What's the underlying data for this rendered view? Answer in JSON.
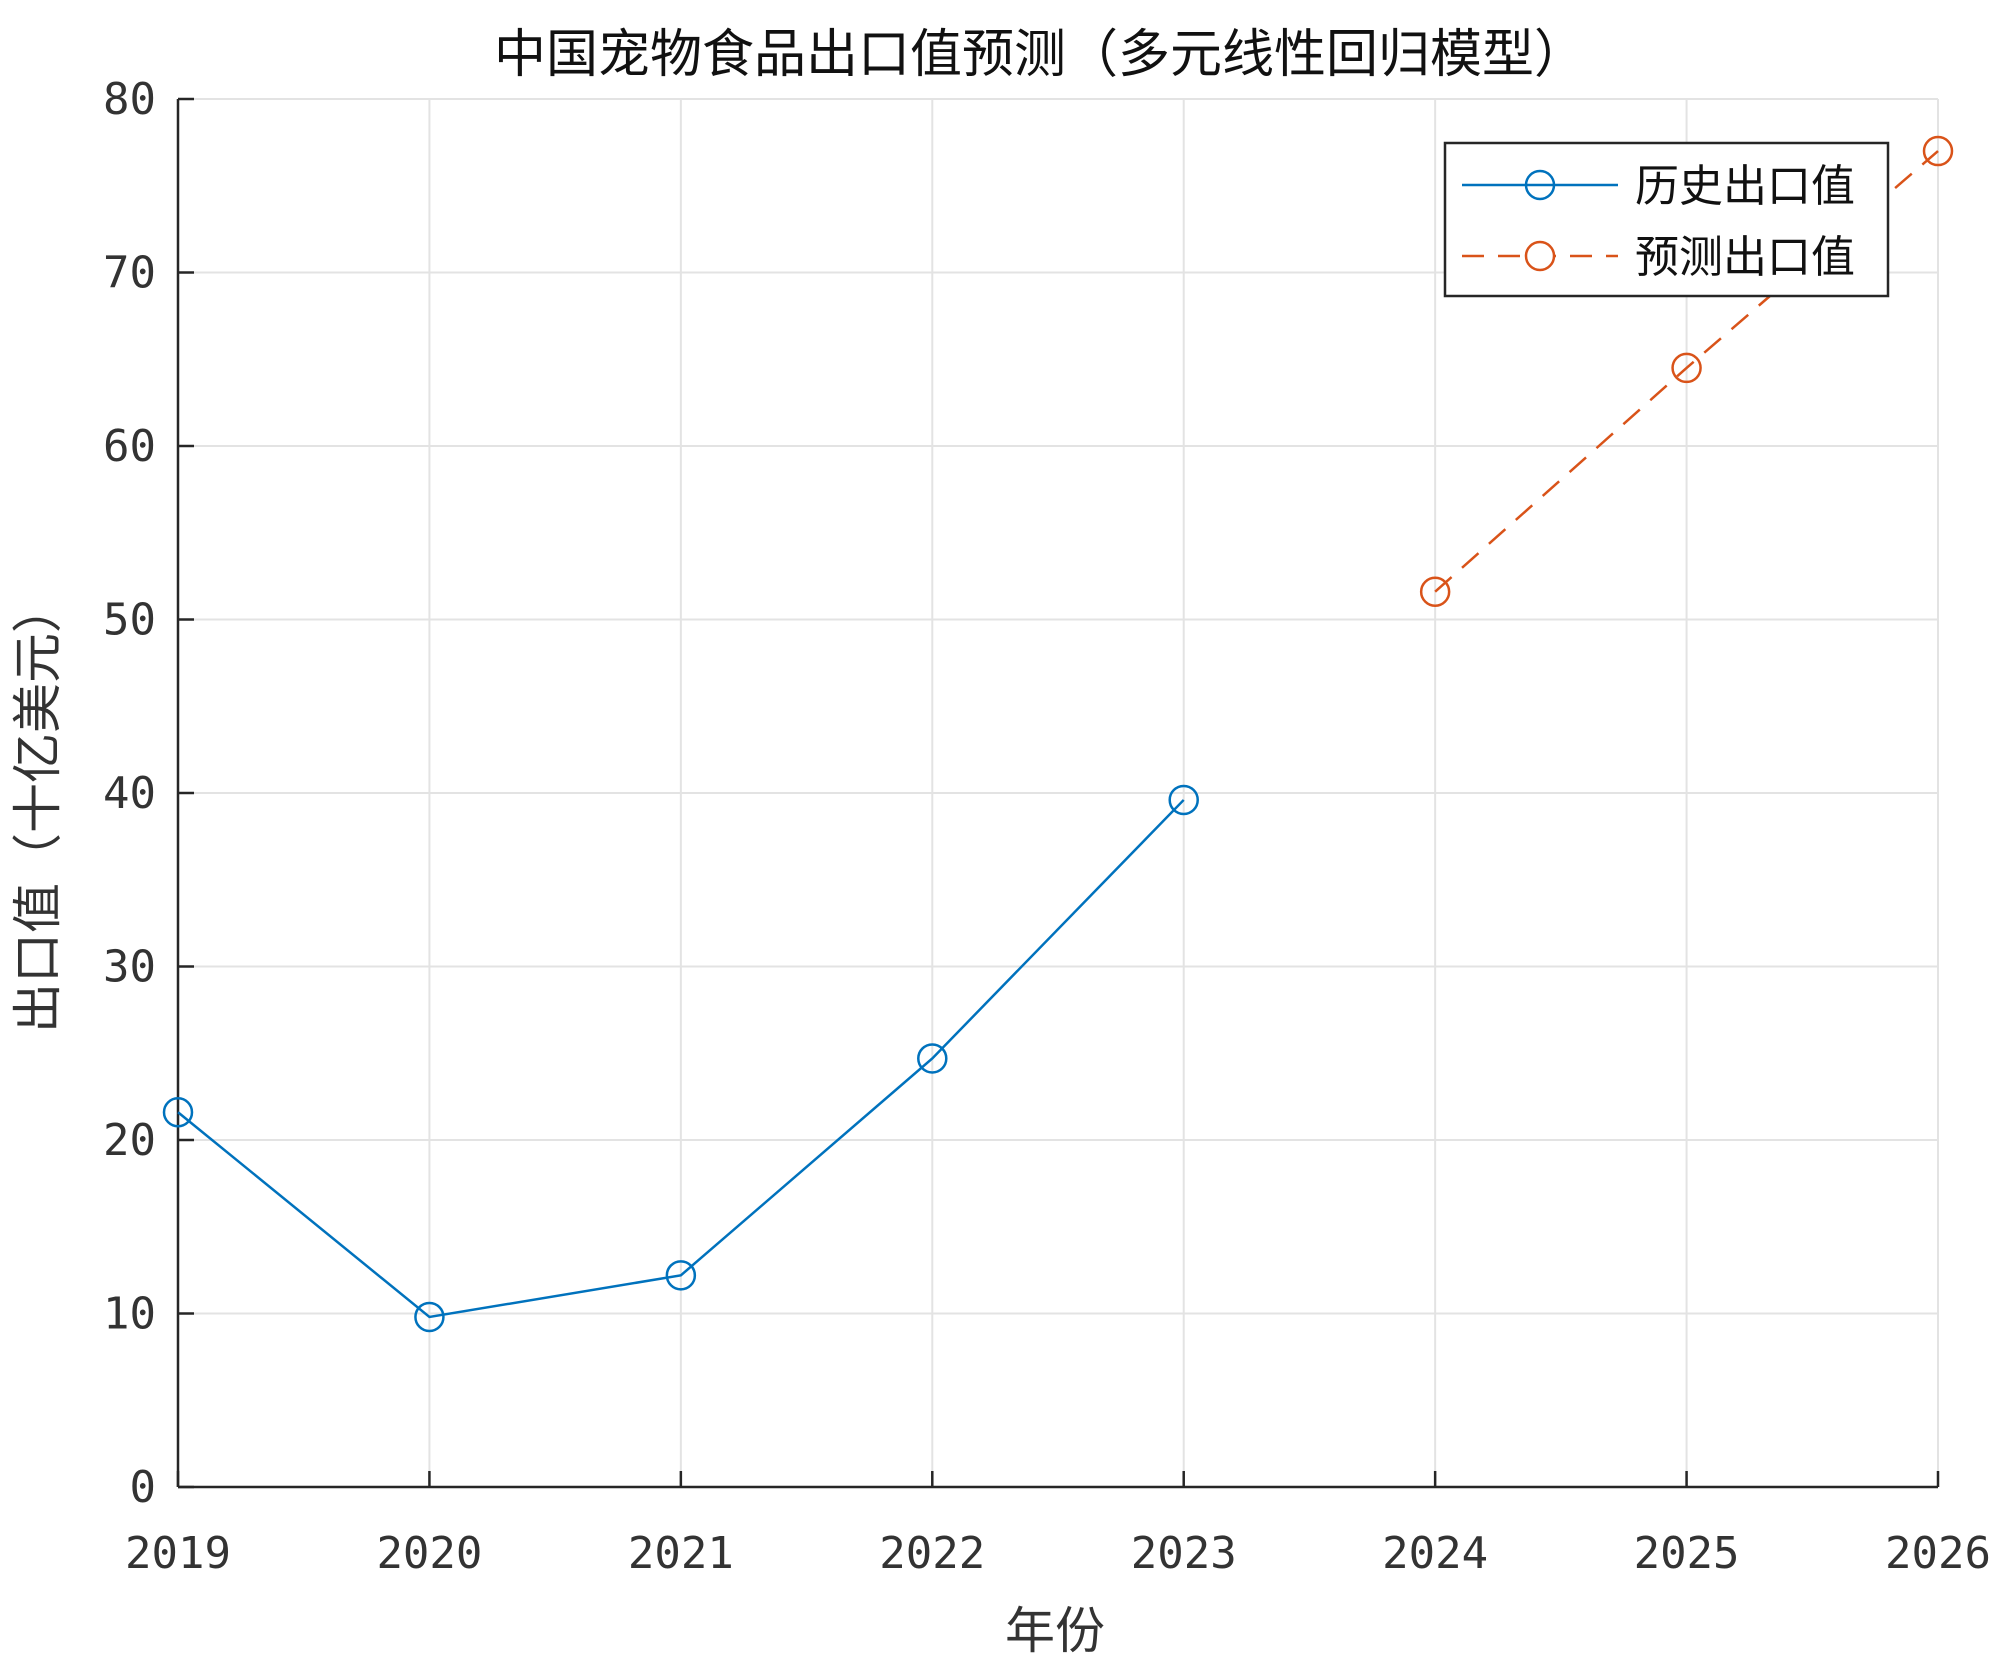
{
  "chart_data": {
    "type": "line",
    "title": "中国宠物食品出口值预测（多元线性回归模型）",
    "xlabel": "年份",
    "ylabel": "出口值（十亿美元）",
    "xlim": [
      2019,
      2026
    ],
    "ylim": [
      0,
      80
    ],
    "xticks": [
      2019,
      2020,
      2021,
      2022,
      2023,
      2024,
      2025,
      2026
    ],
    "yticks": [
      0,
      10,
      20,
      30,
      40,
      50,
      60,
      70,
      80
    ],
    "grid": true,
    "legend_position": "top-right",
    "series": [
      {
        "name": "历史出口值",
        "color": "#0072BD",
        "line_style": "solid",
        "marker": "circle",
        "x": [
          2019,
          2020,
          2021,
          2022,
          2023
        ],
        "y": [
          21.6,
          9.8,
          12.2,
          24.7,
          39.6
        ]
      },
      {
        "name": "预测出口值",
        "color": "#D95319",
        "line_style": "dashed",
        "marker": "circle",
        "x": [
          2024,
          2025,
          2026
        ],
        "y": [
          51.6,
          64.5,
          77.0
        ]
      }
    ]
  }
}
